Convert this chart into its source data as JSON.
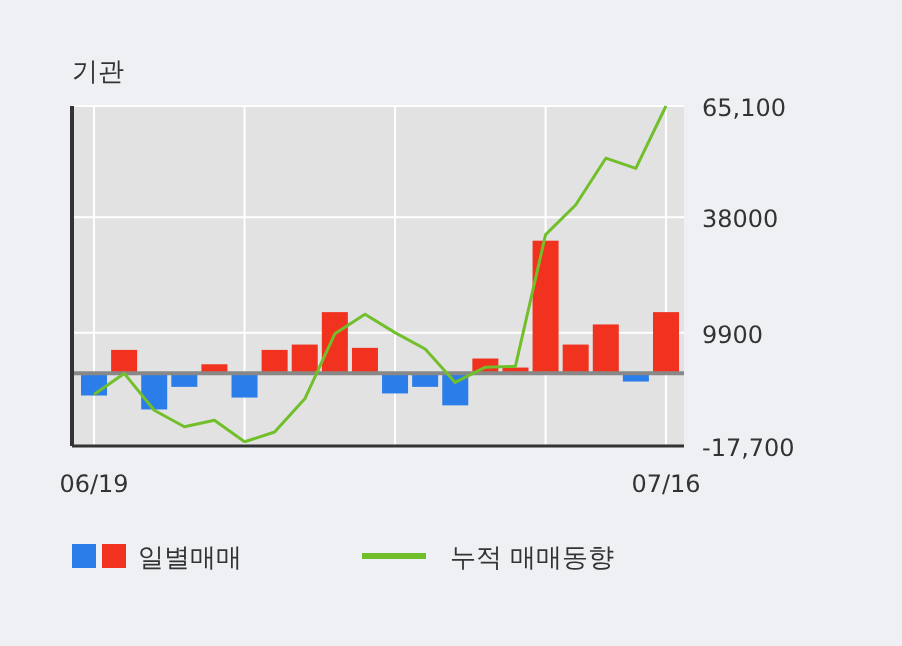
{
  "chart_data": {
    "type": "bar",
    "title": "기관",
    "categories": [
      "06/19",
      null,
      null,
      null,
      null,
      null,
      null,
      null,
      null,
      null,
      null,
      null,
      null,
      null,
      null,
      null,
      null,
      null,
      null,
      "07/16"
    ],
    "series": [
      {
        "name": "일별매매",
        "colors": [
          "#2b7de9",
          "#f0321e",
          "#2b7de9",
          "#2b7de9",
          "#f0321e",
          "#2b7de9",
          "#f0321e",
          "#f0321e",
          "#f0321e",
          "#f0321e",
          "#2b7de9",
          "#2b7de9",
          "#2b7de9",
          "#f0321e",
          "#f0321e",
          "#f0321e",
          "#f0321e",
          "#f0321e",
          "#2b7de9",
          "#f0321e"
        ],
        "values": [
          -5400,
          5700,
          -8800,
          -3300,
          2200,
          -5900,
          5700,
          7000,
          14900,
          6200,
          -4900,
          -3300,
          -7800,
          3600,
          1400,
          32300,
          7000,
          11900,
          -2000,
          14900
        ]
      },
      {
        "name": "누적 매매동향",
        "type": "line",
        "color": "#72bf2c",
        "values": [
          -5200,
          0,
          -9000,
          -13000,
          -11400,
          -16700,
          -14300,
          -6200,
          9600,
          14400,
          9900,
          5900,
          -2200,
          1500,
          1700,
          33800,
          41000,
          52400,
          49900,
          65100
        ]
      }
    ],
    "ylim": [
      -17700,
      65100
    ],
    "yticks": [
      {
        "value": -17700,
        "label": "-17,700"
      },
      9900,
      38000,
      {
        "value": 65100,
        "label": "65,100"
      }
    ],
    "grid": true,
    "legend": "bottom"
  }
}
